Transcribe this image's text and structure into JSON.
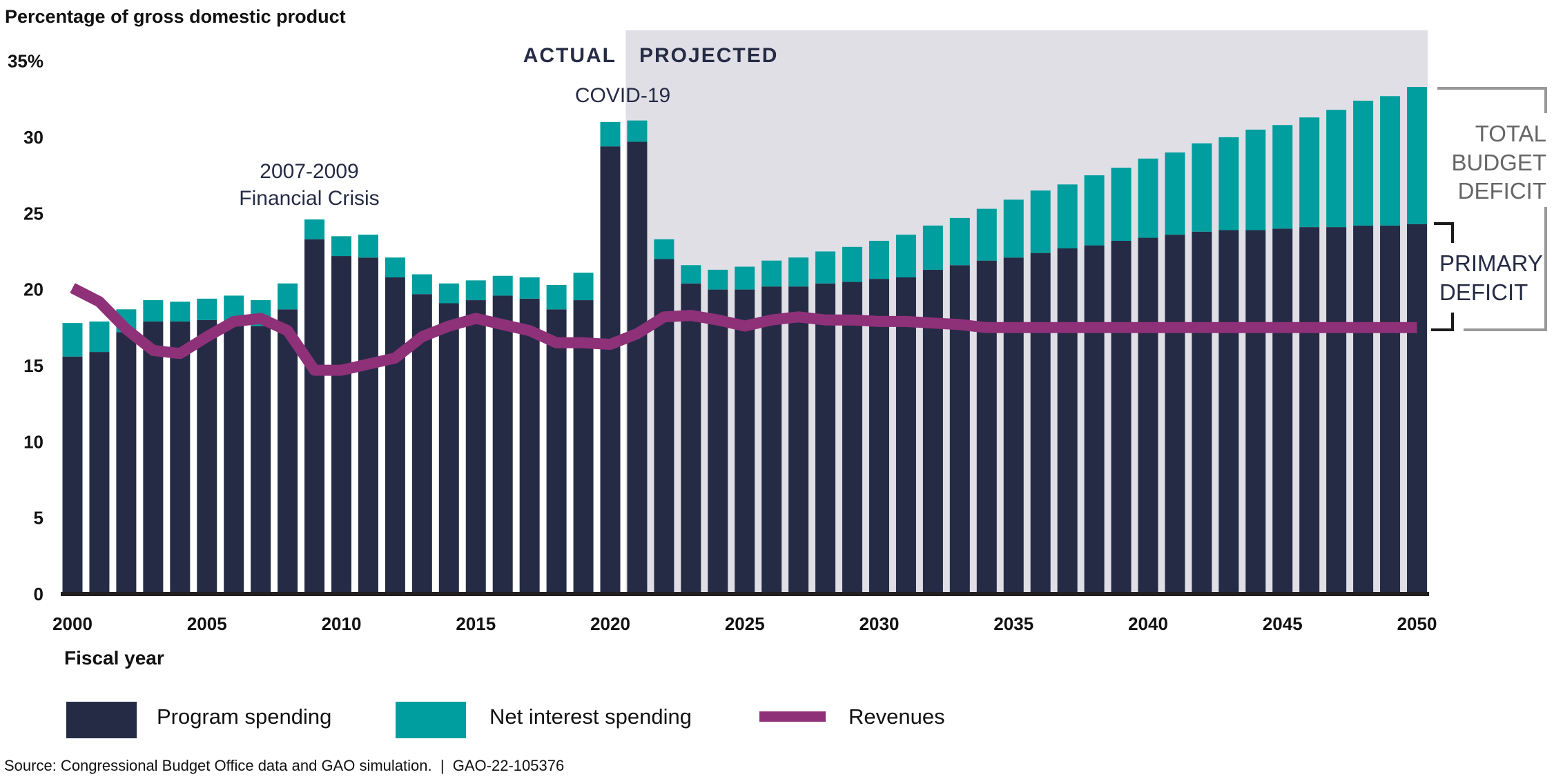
{
  "chart_data": {
    "type": "bar",
    "stacked": true,
    "ylabel": "Percentage of gross domestic product",
    "xlabel": "Fiscal year",
    "ylim": [
      0,
      35
    ],
    "yticks": [
      "0",
      "5",
      "10",
      "15",
      "20",
      "25",
      "30",
      "35%"
    ],
    "xticks": [
      "2000",
      "2005",
      "2010",
      "2015",
      "2020",
      "2025",
      "2030",
      "2035",
      "2040",
      "2045",
      "2050"
    ],
    "grid": false,
    "legend_position": "bottom",
    "x": [
      2000,
      2001,
      2002,
      2003,
      2004,
      2005,
      2006,
      2007,
      2008,
      2009,
      2010,
      2011,
      2012,
      2013,
      2014,
      2015,
      2016,
      2017,
      2018,
      2019,
      2020,
      2021,
      2022,
      2023,
      2024,
      2025,
      2026,
      2027,
      2028,
      2029,
      2030,
      2031,
      2032,
      2033,
      2034,
      2035,
      2036,
      2037,
      2038,
      2039,
      2040,
      2041,
      2042,
      2043,
      2044,
      2045,
      2046,
      2047,
      2048,
      2049,
      2050
    ],
    "series": [
      {
        "name": "Program spending",
        "kind": "bar",
        "color": "#262b45",
        "values": [
          15.6,
          15.9,
          17.2,
          17.9,
          17.9,
          18.0,
          17.9,
          17.6,
          18.7,
          23.3,
          22.2,
          22.1,
          20.8,
          19.7,
          19.1,
          19.3,
          19.6,
          19.4,
          18.7,
          19.3,
          29.4,
          29.7,
          22.0,
          20.4,
          20.0,
          20.0,
          20.2,
          20.2,
          20.4,
          20.5,
          20.7,
          20.8,
          21.3,
          21.6,
          21.9,
          22.1,
          22.4,
          22.7,
          22.9,
          23.2,
          23.4,
          23.6,
          23.8,
          23.9,
          23.9,
          24.0,
          24.1,
          24.1,
          24.2,
          24.2,
          24.3
        ]
      },
      {
        "name": "Net interest spending",
        "kind": "bar",
        "color": "#009e9e",
        "values": [
          2.2,
          2.0,
          1.5,
          1.4,
          1.3,
          1.4,
          1.7,
          1.7,
          1.7,
          1.3,
          1.3,
          1.5,
          1.3,
          1.3,
          1.3,
          1.3,
          1.3,
          1.4,
          1.6,
          1.8,
          1.6,
          1.4,
          1.3,
          1.2,
          1.3,
          1.5,
          1.7,
          1.9,
          2.1,
          2.3,
          2.5,
          2.8,
          2.9,
          3.1,
          3.4,
          3.8,
          4.1,
          4.2,
          4.6,
          4.8,
          5.2,
          5.4,
          5.8,
          6.1,
          6.6,
          6.8,
          7.2,
          7.7,
          8.2,
          8.5,
          9.0
        ]
      },
      {
        "name": "Revenues",
        "kind": "line",
        "color": "#8e3179",
        "values": [
          20.1,
          19.2,
          17.4,
          16.0,
          15.8,
          16.9,
          17.9,
          18.1,
          17.3,
          14.7,
          14.7,
          15.1,
          15.5,
          16.9,
          17.6,
          18.1,
          17.7,
          17.3,
          16.5,
          16.5,
          16.4,
          17.1,
          18.2,
          18.3,
          18.0,
          17.6,
          18.0,
          18.2,
          18.0,
          18.0,
          17.9,
          17.9,
          17.8,
          17.7,
          17.5,
          17.5,
          17.5,
          17.5,
          17.5,
          17.5,
          17.5,
          17.5,
          17.5,
          17.5,
          17.5,
          17.5,
          17.5,
          17.5,
          17.5,
          17.5,
          17.5
        ]
      }
    ],
    "projection_start": 2021,
    "shading_color": "#e0dfe6",
    "annotations": {
      "actual": "ACTUAL",
      "projected": "PROJECTED",
      "covid": "COVID-19",
      "crisis_line1": "2007-2009",
      "crisis_line2": "Financial Crisis",
      "total_deficit": [
        "TOTAL",
        "BUDGET",
        "DEFICIT"
      ],
      "primary_deficit": [
        "PRIMARY",
        "DEFICIT"
      ]
    }
  },
  "source": "Source: Congressional Budget Office data and GAO simulation.  |  GAO-22-105376"
}
